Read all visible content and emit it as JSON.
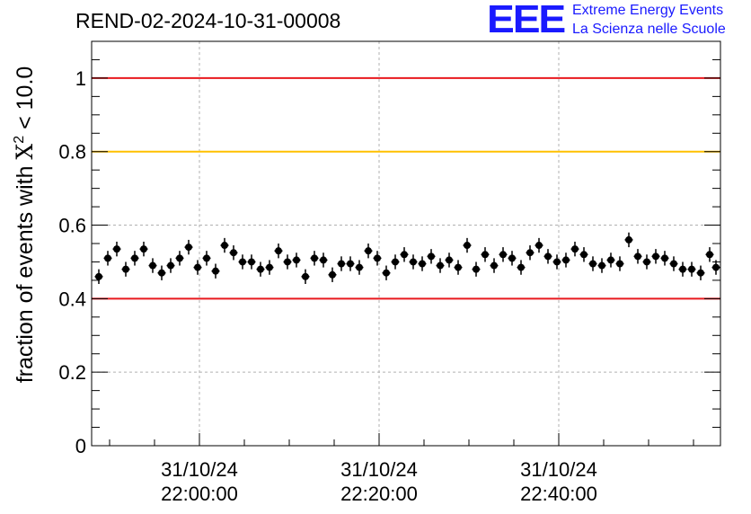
{
  "title": "REND-02-2024-10-31-00008",
  "logo": {
    "letters": "EEE",
    "line1": "Extreme Energy Events",
    "line2": "La Scienza nelle Scuole",
    "color": "#1a1aff"
  },
  "chart_data": {
    "type": "scatter",
    "title": "REND-02-2024-10-31-00008",
    "ylabel_prefix": "fraction of events with ",
    "ylabel_symbol": "Χ",
    "ylabel_sup": "2",
    "ylabel_suffix": " < 10.0",
    "xlabel": "",
    "x_unit": "time (31/10/24, minutes after 21:48:00)",
    "xlim": [
      0,
      70
    ],
    "ylim": [
      0,
      1.1
    ],
    "y_ticks": [
      0,
      0.2,
      0.4,
      0.6,
      0.8,
      1
    ],
    "y_tick_labels": [
      "0",
      "0.2",
      "0.4",
      "0.6",
      "0.8",
      "1"
    ],
    "x_ticks": [
      {
        "x": 12,
        "date": "31/10/24",
        "time": "22:00:00"
      },
      {
        "x": 32,
        "date": "31/10/24",
        "time": "22:20:00"
      },
      {
        "x": 52,
        "date": "31/10/24",
        "time": "22:40:00"
      }
    ],
    "grid": true,
    "reference_lines": [
      {
        "y": 1.0,
        "color": "#e8191e"
      },
      {
        "y": 0.8,
        "color": "#ffc000"
      },
      {
        "y": 0.4,
        "color": "#e8191e"
      }
    ],
    "series": [
      {
        "x": [
          0.8,
          1.8,
          2.8,
          3.8,
          4.8,
          5.8,
          6.8,
          7.8,
          8.8,
          9.8,
          10.8,
          11.8,
          12.8,
          13.8,
          14.8,
          15.8,
          16.8,
          17.8,
          18.8,
          19.8,
          20.8,
          21.8,
          22.8,
          23.8,
          24.8,
          25.8,
          26.8,
          27.8,
          28.8,
          29.8,
          30.8,
          31.8,
          32.8,
          33.8,
          34.8,
          35.8,
          36.8,
          37.8,
          38.8,
          39.8,
          40.8,
          41.8,
          42.8,
          43.8,
          44.8,
          45.8,
          46.8,
          47.8,
          48.8,
          49.8,
          50.8,
          51.8,
          52.8,
          53.8,
          54.8,
          55.8,
          56.8,
          57.8,
          58.8,
          59.8,
          60.8,
          61.8,
          62.8,
          63.8,
          64.8,
          65.8,
          66.8,
          67.8,
          68.8,
          69.5
        ],
        "y": [
          0.46,
          0.51,
          0.535,
          0.48,
          0.51,
          0.535,
          0.49,
          0.47,
          0.49,
          0.51,
          0.54,
          0.485,
          0.51,
          0.475,
          0.545,
          0.525,
          0.5,
          0.5,
          0.48,
          0.485,
          0.53,
          0.5,
          0.505,
          0.46,
          0.51,
          0.505,
          0.465,
          0.495,
          0.495,
          0.485,
          0.53,
          0.51,
          0.47,
          0.5,
          0.52,
          0.5,
          0.495,
          0.515,
          0.49,
          0.505,
          0.485,
          0.545,
          0.48,
          0.52,
          0.49,
          0.52,
          0.51,
          0.485,
          0.525,
          0.545,
          0.515,
          0.5,
          0.505,
          0.535,
          0.52,
          0.495,
          0.49,
          0.505,
          0.495,
          0.56,
          0.515,
          0.5,
          0.515,
          0.51,
          0.495,
          0.48,
          0.48,
          0.47,
          0.52,
          0.485
        ],
        "yerr": 0.02,
        "xerr": 0.45,
        "marker": "circle",
        "color": "#000000"
      }
    ]
  }
}
